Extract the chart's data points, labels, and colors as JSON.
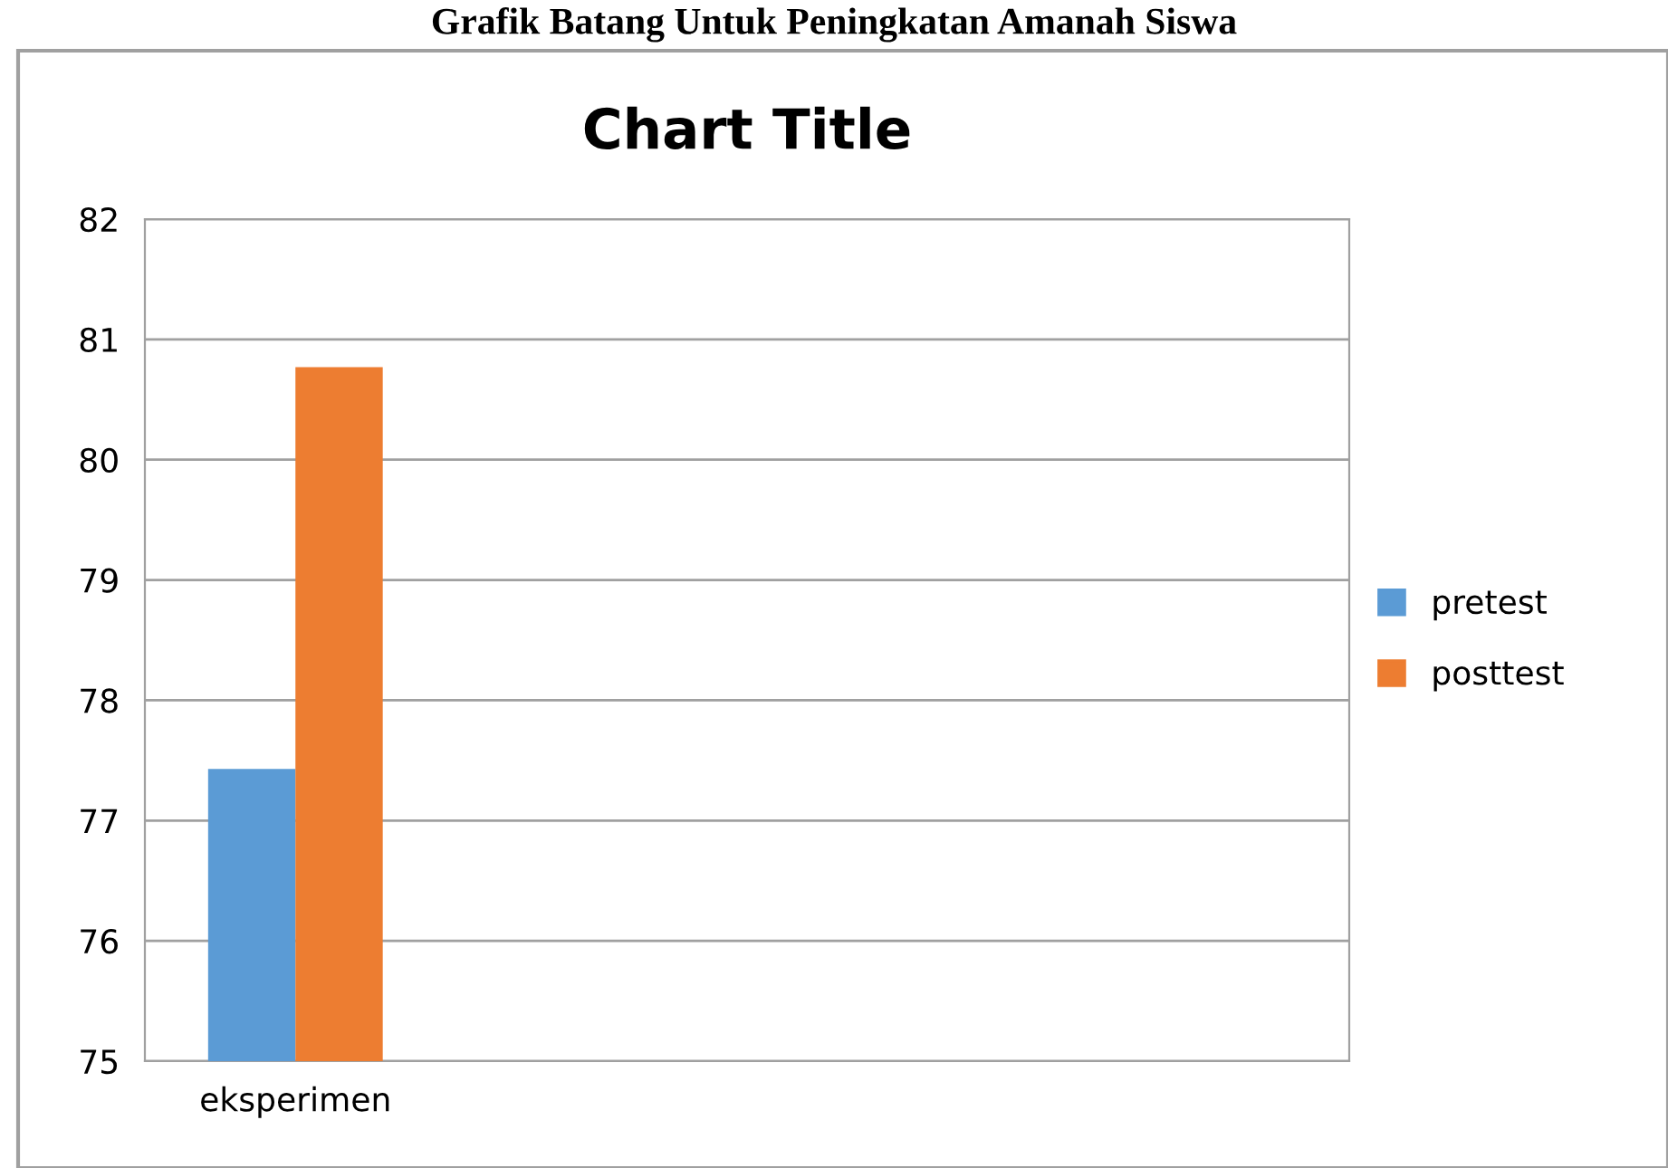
{
  "chart_data": {
    "type": "bar",
    "title": "Chart Title",
    "annotations": [
      "Grafik Batang Untuk Peningkatan Amanah Siswa"
    ],
    "categories": [
      "eksperimen",
      null,
      null,
      null
    ],
    "series": [
      {
        "name": "pretest",
        "color": "#5b9bd5",
        "values": [
          77.43,
          null,
          null,
          null
        ]
      },
      {
        "name": "posttest",
        "color": "#ed7d31",
        "values": [
          80.77,
          null,
          null,
          null
        ]
      }
    ],
    "ylim": [
      75,
      82
    ],
    "yticks": [
      75,
      76,
      77,
      78,
      79,
      80,
      81,
      82
    ],
    "grid": "y",
    "legend": "right"
  }
}
